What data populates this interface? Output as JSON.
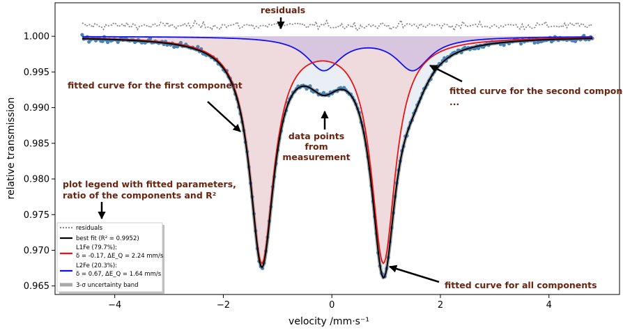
{
  "chart_data": {
    "type": "scatter",
    "xlabel": "velocity /mm·s⁻¹",
    "ylabel": "relative transmission",
    "xlim": [
      -5.1,
      5.3
    ],
    "ylim": [
      0.9638,
      1.0047
    ],
    "xticks": [
      -4,
      -2,
      0,
      2,
      4
    ],
    "xtick_labels": [
      "−4",
      "−2",
      "0",
      "2",
      "4"
    ],
    "yticks": [
      0.965,
      0.97,
      0.975,
      0.98,
      0.985,
      0.99,
      0.995,
      1.0
    ],
    "ytick_labels": [
      "0.965",
      "0.970",
      "0.975",
      "0.980",
      "0.985",
      "0.990",
      "0.995",
      "1.000"
    ],
    "grid": false,
    "legend_position": "lower-left",
    "velocity_range": [
      -4.6,
      4.8
    ],
    "residual_baseline": 1.0015,
    "components": [
      {
        "name": "L1Fe (79.7%):",
        "param_line": "δ = -0.17, ΔE_Q = 2.24 mm/s",
        "isomer_shift": -0.17,
        "quadrupole_splitting": 2.24,
        "area_percent": 79.7,
        "line_positions": [
          -1.29,
          0.95
        ],
        "line_depth": 0.0314,
        "hwhm": 0.27,
        "color": "#ee1111",
        "fill": "#ecd3d8"
      },
      {
        "name": "L2Fe (20.3%):",
        "param_line": "δ = 0.67, ΔE_Q = 1.64 mm/s",
        "isomer_shift": 0.67,
        "quadrupole_splitting": 1.64,
        "area_percent": 20.3,
        "line_positions": [
          -0.15,
          1.49
        ],
        "line_depth": 0.0046,
        "hwhm": 0.38,
        "color": "#1111ee",
        "fill": "#d3c2e1"
      }
    ],
    "best_fit": {
      "name": "best fit",
      "r_squared": 0.9952,
      "color": "#000000"
    },
    "colors": {
      "data_points": "#4a83b4",
      "residuals": "#888888",
      "uncertainty_band": "#a8a8a8",
      "annotations": "#6b2410"
    },
    "annotations": [
      {
        "text": "residuals"
      },
      {
        "text": "fitted curve for the first component"
      },
      {
        "text": "fitted curve for the second component"
      },
      {
        "text": "..."
      },
      {
        "text": "data points"
      },
      {
        "text": "from"
      },
      {
        "text": "measurement"
      },
      {
        "text": "plot legend with fitted parameters,"
      },
      {
        "text": "ratio of the components and R²"
      },
      {
        "text": "fitted curve for all components"
      }
    ],
    "legend": [
      {
        "label": "residuals"
      },
      {
        "label": "best fit (R² = 0.9952)"
      },
      {
        "label": "L1Fe (79.7%):"
      },
      {
        "label": "δ = -0.17, ΔE_Q = 2.24 mm/s"
      },
      {
        "label": "L2Fe (20.3%):"
      },
      {
        "label": "δ = 0.67, ΔE_Q = 1.64 mm/s"
      },
      {
        "label": "3-σ uncertainty band"
      }
    ]
  }
}
